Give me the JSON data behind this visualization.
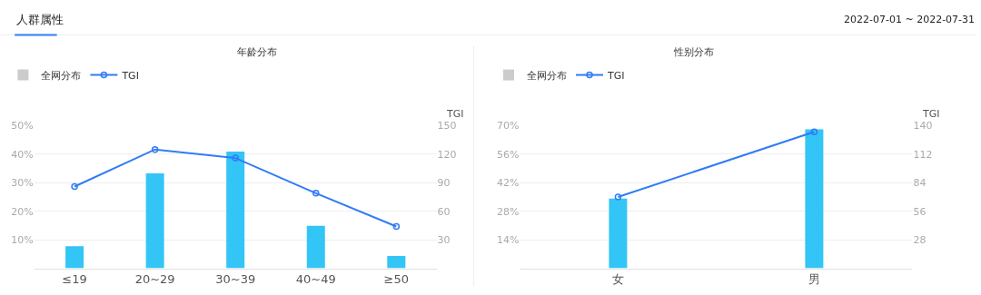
{
  "chart_data": [
    {
      "type": "bar",
      "title": "年龄分布",
      "annotations": [
        "人群属性"
      ],
      "y2label": "TGI",
      "categories": [
        "≤19",
        "20~29",
        "30~39",
        "40~49",
        "≥50"
      ],
      "series": [
        {
          "color": "#33c5f6",
          "values": [
            7.7,
            33.3,
            40.9,
            14.9,
            4.3
          ]
        },
        {
          "name": "全网分布",
          "color": "#cccccc",
          "values": [
            null,
            null,
            null,
            null,
            null
          ]
        },
        {
          "type": "line",
          "name": "TGI",
          "axis": "y2",
          "color": "#2f7cf6",
          "marker": "circle",
          "values": [
            86,
            125,
            116,
            79,
            44
          ]
        }
      ],
      "ylim": [
        0,
        50
      ],
      "yticks": [
        {
          "value": 10,
          "label": "10%"
        },
        {
          "value": 20,
          "label": "20%"
        },
        {
          "value": 30,
          "label": "30%"
        },
        {
          "value": 40,
          "label": "40%"
        },
        {
          "value": 50,
          "label": "50%"
        }
      ],
      "y2lim": [
        0,
        150
      ],
      "y2ticks": [
        30,
        60,
        90,
        120,
        150
      ],
      "grid": "y",
      "legend": "top left"
    },
    {
      "type": "bar",
      "title": "性别分布",
      "annotations": [
        "2022-07-01 ~ 2022-07-31"
      ],
      "y2label": "TGI",
      "categories": [
        "女",
        "男"
      ],
      "series": [
        {
          "color": "#33c5f6",
          "values": [
            34.2,
            68.2
          ]
        },
        {
          "name": "全网分布",
          "color": "#cccccc",
          "values": [
            null,
            null
          ]
        },
        {
          "type": "line",
          "name": "TGI",
          "axis": "y2",
          "color": "#2f7cf6",
          "marker": "circle",
          "values": [
            70,
            134
          ]
        }
      ],
      "ylim": [
        0,
        70
      ],
      "yticks": [
        {
          "value": 14,
          "label": "14%"
        },
        {
          "value": 28,
          "label": "28%"
        },
        {
          "value": 42,
          "label": "42%"
        },
        {
          "value": 56,
          "label": "56%"
        },
        {
          "value": 70,
          "label": "70%"
        }
      ],
      "y2lim": [
        0,
        140
      ],
      "y2ticks": [
        28,
        56,
        84,
        112,
        140
      ],
      "grid": "y",
      "legend": "top left"
    }
  ]
}
